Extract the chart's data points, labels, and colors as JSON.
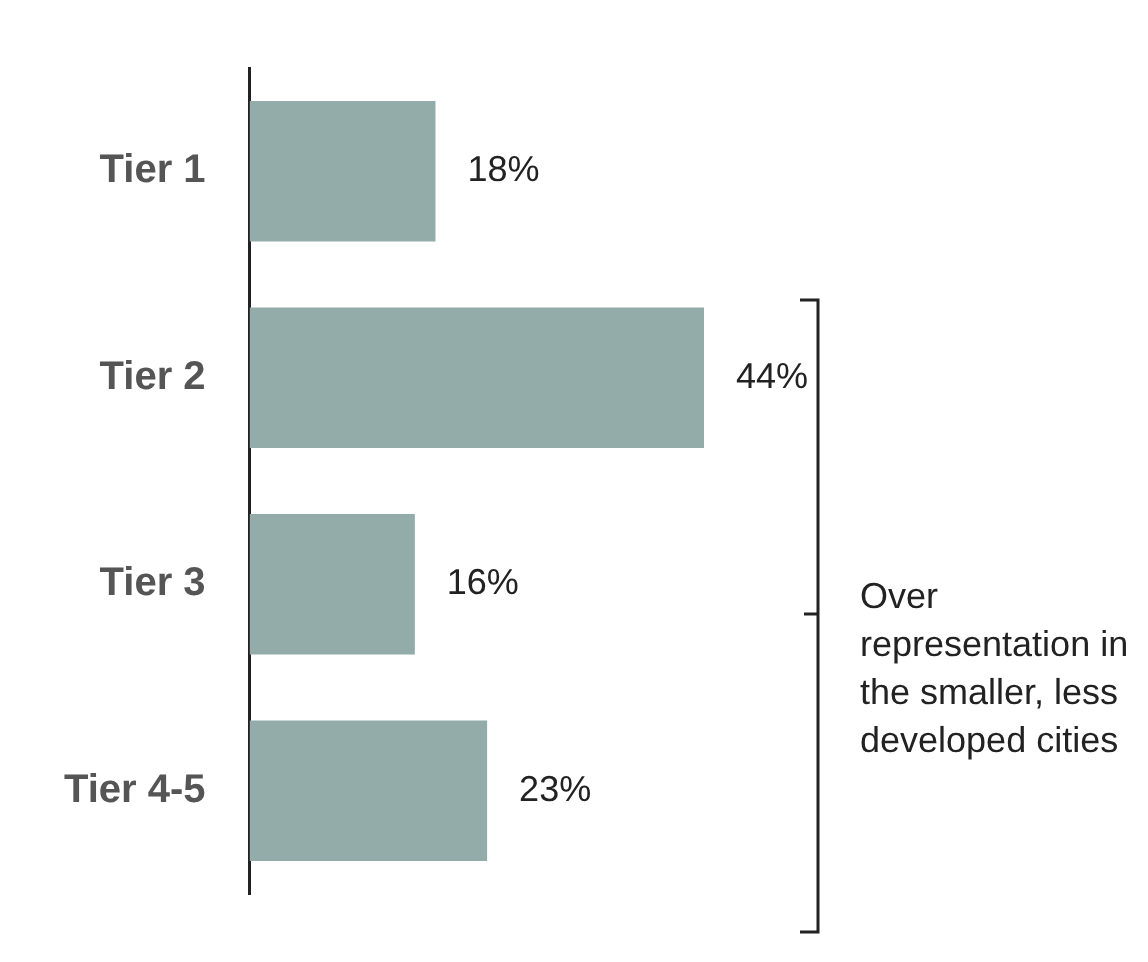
{
  "chart_data": {
    "type": "bar",
    "orientation": "horizontal",
    "categories": [
      "Tier 1",
      "Tier 2",
      "Tier 3",
      "Tier 4-5"
    ],
    "values": [
      18,
      44,
      16,
      23
    ],
    "value_labels": [
      "18%",
      "44%",
      "16%",
      "23%"
    ],
    "color": "#93aba9",
    "legend": false,
    "grid": false,
    "annotations": [
      "Over representation in the smaller, less developed cities"
    ]
  }
}
